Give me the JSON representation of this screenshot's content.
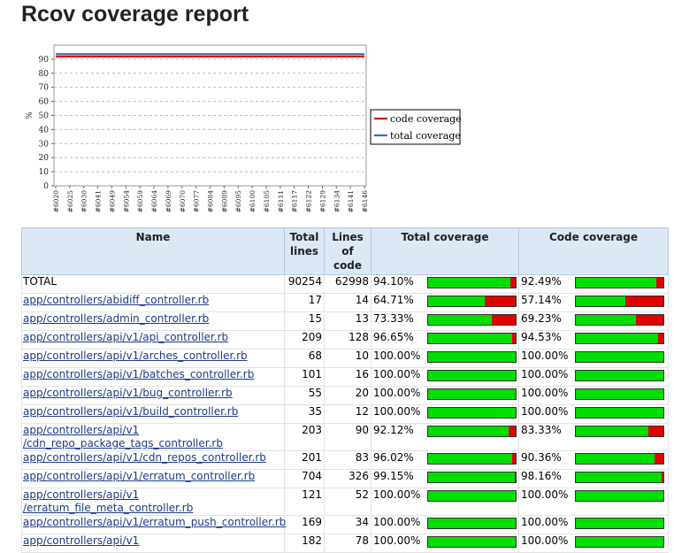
{
  "page": {
    "title": "Rcov coverage report"
  },
  "chart_data": {
    "type": "line",
    "ylabel": "%",
    "ylim": [
      0,
      100
    ],
    "yticks": [
      0,
      10,
      20,
      30,
      40,
      50,
      60,
      70,
      80,
      90
    ],
    "x": [
      "#6020",
      "#6025",
      "#6030",
      "#6041",
      "#6049",
      "#6054",
      "#6059",
      "#6064",
      "#6069",
      "#6070",
      "#6077",
      "#6084",
      "#6089",
      "#6095",
      "#6100",
      "#6105",
      "#6111",
      "#6117",
      "#6122",
      "#6129",
      "#6134",
      "#6141",
      "#6146"
    ],
    "grid": true,
    "legend_position": "right",
    "series": [
      {
        "name": "code coverage",
        "color": "#dd0000",
        "values": [
          91.9,
          91.9,
          91.9,
          91.9,
          91.9,
          91.9,
          91.9,
          91.9,
          91.9,
          91.9,
          91.9,
          91.9,
          91.9,
          91.9,
          91.9,
          91.9,
          91.9,
          91.9,
          91.9,
          91.9,
          91.9,
          91.9,
          91.9
        ]
      },
      {
        "name": "total coverage",
        "color": "#3a6fb0",
        "values": [
          93.6,
          93.6,
          93.6,
          93.6,
          93.6,
          93.6,
          93.6,
          93.6,
          93.6,
          93.6,
          93.6,
          93.6,
          93.6,
          93.6,
          93.6,
          93.6,
          93.6,
          93.6,
          93.6,
          93.6,
          93.6,
          93.6,
          93.6
        ]
      }
    ]
  },
  "table": {
    "headers": {
      "name": "Name",
      "total_lines": "Total lines",
      "lines_of_code": "Lines of code",
      "total_coverage": "Total coverage",
      "code_coverage": "Code coverage"
    },
    "colors": {
      "covered": "#00dd00",
      "uncovered": "#e00000",
      "header_bg": "#dde8f5"
    },
    "rows": [
      {
        "name": "TOTAL",
        "link": false,
        "total_lines": "90254",
        "lines_of_code": "62998",
        "total_pct": "94.10%",
        "total_value": 94.1,
        "code_pct": "92.49%",
        "code_value": 92.49
      },
      {
        "name": "app/controllers/abidiff_controller.rb",
        "link": true,
        "total_lines": "17",
        "lines_of_code": "14",
        "total_pct": "64.71%",
        "total_value": 64.71,
        "code_pct": "57.14%",
        "code_value": 57.14
      },
      {
        "name": "app/controllers/admin_controller.rb",
        "link": true,
        "total_lines": "15",
        "lines_of_code": "13",
        "total_pct": "73.33%",
        "total_value": 73.33,
        "code_pct": "69.23%",
        "code_value": 69.23
      },
      {
        "name": "app/controllers/api/v1/api_controller.rb",
        "link": true,
        "total_lines": "209",
        "lines_of_code": "128",
        "total_pct": "96.65%",
        "total_value": 96.65,
        "code_pct": "94.53%",
        "code_value": 94.53
      },
      {
        "name": "app/controllers/api/v1/arches_controller.rb",
        "link": true,
        "total_lines": "68",
        "lines_of_code": "10",
        "total_pct": "100.00%",
        "total_value": 100,
        "code_pct": "100.00%",
        "code_value": 100
      },
      {
        "name": "app/controllers/api/v1/batches_controller.rb",
        "link": true,
        "total_lines": "101",
        "lines_of_code": "16",
        "total_pct": "100.00%",
        "total_value": 100,
        "code_pct": "100.00%",
        "code_value": 100
      },
      {
        "name": "app/controllers/api/v1/bug_controller.rb",
        "link": true,
        "total_lines": "55",
        "lines_of_code": "20",
        "total_pct": "100.00%",
        "total_value": 100,
        "code_pct": "100.00%",
        "code_value": 100
      },
      {
        "name": "app/controllers/api/v1/build_controller.rb",
        "link": true,
        "total_lines": "35",
        "lines_of_code": "12",
        "total_pct": "100.00%",
        "total_value": 100,
        "code_pct": "100.00%",
        "code_value": 100
      },
      {
        "name": "app/controllers/api/v1\n/cdn_repo_package_tags_controller.rb",
        "link": true,
        "total_lines": "203",
        "lines_of_code": "90",
        "total_pct": "92.12%",
        "total_value": 92.12,
        "code_pct": "83.33%",
        "code_value": 83.33
      },
      {
        "name": "app/controllers/api/v1/cdn_repos_controller.rb",
        "link": true,
        "total_lines": "201",
        "lines_of_code": "83",
        "total_pct": "96.02%",
        "total_value": 96.02,
        "code_pct": "90.36%",
        "code_value": 90.36
      },
      {
        "name": "app/controllers/api/v1/erratum_controller.rb",
        "link": true,
        "total_lines": "704",
        "lines_of_code": "326",
        "total_pct": "99.15%",
        "total_value": 99.15,
        "code_pct": "98.16%",
        "code_value": 98.16
      },
      {
        "name": "app/controllers/api/v1\n/erratum_file_meta_controller.rb",
        "link": true,
        "total_lines": "121",
        "lines_of_code": "52",
        "total_pct": "100.00%",
        "total_value": 100,
        "code_pct": "100.00%",
        "code_value": 100
      },
      {
        "name": "app/controllers/api/v1/erratum_push_controller.rb",
        "link": true,
        "total_lines": "169",
        "lines_of_code": "34",
        "total_pct": "100.00%",
        "total_value": 100,
        "code_pct": "100.00%",
        "code_value": 100
      },
      {
        "name": "app/controllers/api/v1",
        "link": true,
        "total_lines": "182",
        "lines_of_code": "78",
        "total_pct": "100.00%",
        "total_value": 100,
        "code_pct": "100.00%",
        "code_value": 100
      }
    ]
  }
}
